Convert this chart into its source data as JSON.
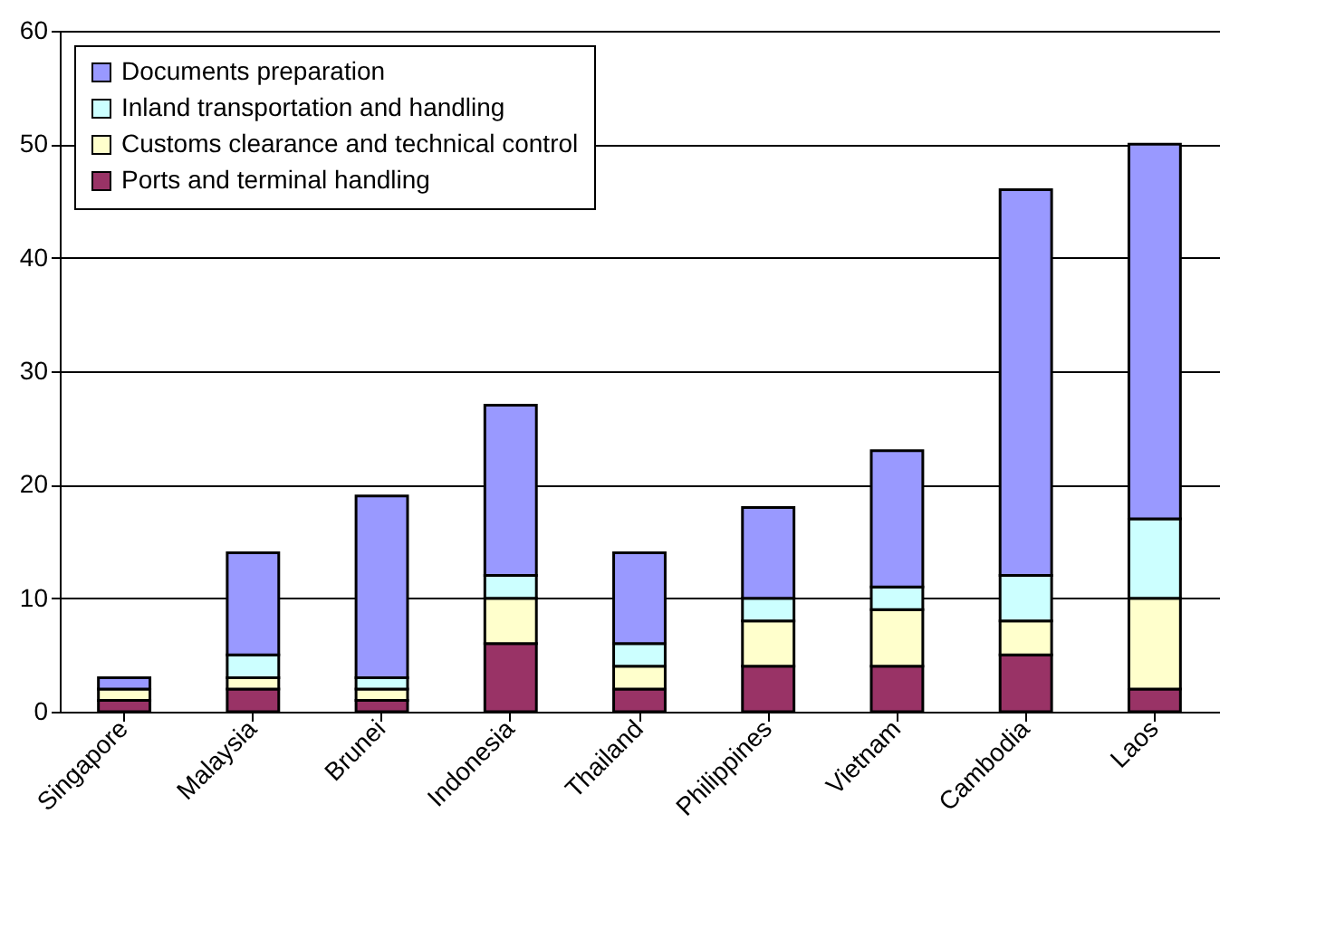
{
  "chart_data": {
    "type": "bar",
    "stacked": true,
    "categories": [
      "Singapore",
      "Malaysia",
      "Brunei",
      "Indonesia",
      "Thailand",
      "Philippines",
      "Vietnam",
      "Cambodia",
      "Laos"
    ],
    "series": [
      {
        "name": "Ports and terminal handling",
        "color": "#993366",
        "values": [
          1,
          2,
          1,
          6,
          2,
          4,
          4,
          5,
          2
        ]
      },
      {
        "name": "Customs clearance and technical control",
        "color": "#ffffcc",
        "values": [
          1,
          1,
          1,
          4,
          2,
          4,
          5,
          3,
          8
        ]
      },
      {
        "name": "Inland transportation and handling",
        "color": "#ccffff",
        "values": [
          null,
          2,
          1,
          2,
          2,
          2,
          2,
          4,
          7
        ]
      },
      {
        "name": "Documents preparation",
        "color": "#9999ff",
        "values": [
          1,
          9,
          16,
          15,
          8,
          8,
          12,
          34,
          33
        ]
      }
    ],
    "ylim": [
      0,
      60
    ],
    "yticks": [
      0,
      10,
      20,
      30,
      40,
      50,
      60
    ],
    "grid": "y",
    "legend": "top left"
  }
}
